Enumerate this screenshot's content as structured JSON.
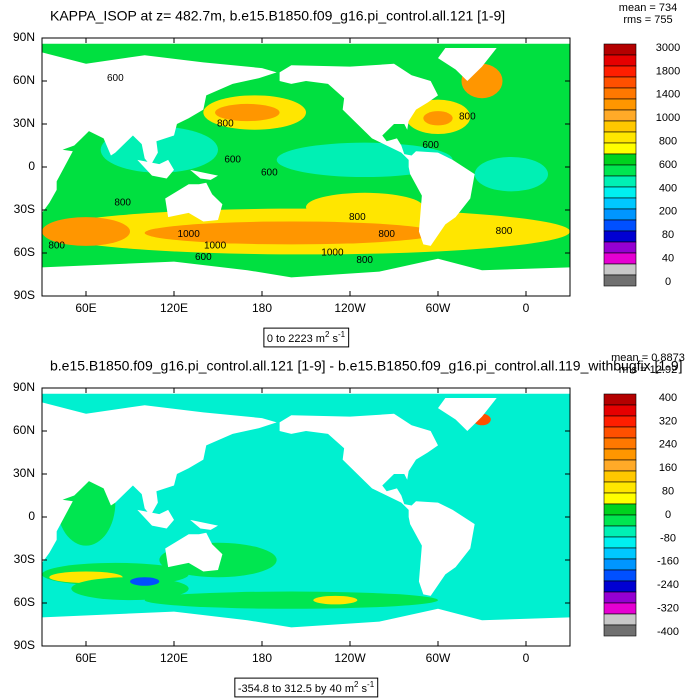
{
  "panels": [
    {
      "title": "KAPPA_ISOP at z= 482.7m, b.e15.B1850.f09_g16.pi_control.all.121 [1-9]",
      "stats": [
        "mean = 734",
        "rms = 755"
      ],
      "lat_labels": [
        "90N",
        "60N",
        "30N",
        "0",
        "30S",
        "60S",
        "90S"
      ],
      "lon_labels": [
        "60E",
        "120E",
        "180",
        "120W",
        "60W",
        "0"
      ],
      "range_label": [
        "0 to 2223 m",
        "2",
        " s",
        "-1"
      ],
      "colorbar_labels": [
        "3000",
        "1800",
        "1400",
        "1000",
        "800",
        "600",
        "400",
        "200",
        "80",
        "40",
        "0"
      ],
      "colorbar_colors": [
        "#b40000",
        "#e60000",
        "#ff1e00",
        "#ff5000",
        "#ff7800",
        "#ff9600",
        "#ffaa28",
        "#ffc800",
        "#ffe600",
        "#ffff00",
        "#00d21e",
        "#00e650",
        "#00f0b4",
        "#00f0f0",
        "#00c8ff",
        "#0096ff",
        "#0050ff",
        "#0000d2",
        "#9600d2",
        "#e600d2",
        "#c8c8c8",
        "#707070"
      ],
      "contour_labels": [
        "600",
        "800",
        "800",
        "600",
        "600",
        "600",
        "800",
        "1000",
        "1000",
        "600",
        "800",
        "800",
        "800",
        "800",
        "1000",
        "800"
      ]
    },
    {
      "title": "b.e15.B1850.f09_g16.pi_control.all.121 [1-9] - b.e15.B1850.f09_g16.pi_control.all.119_withbugfix [1-9]",
      "stats": [
        "mean = 0.8873",
        "rms = 12.92"
      ],
      "lat_labels": [
        "90N",
        "60N",
        "30N",
        "0",
        "30S",
        "60S",
        "90S"
      ],
      "lon_labels": [
        "60E",
        "120E",
        "180",
        "120W",
        "60W",
        "0"
      ],
      "range_label": [
        "-354.8 to 312.5 by 40 m",
        "2",
        " s",
        "-1"
      ],
      "colorbar_labels": [
        "400",
        "320",
        "240",
        "160",
        "80",
        "0",
        "-80",
        "-160",
        "-240",
        "-320",
        "-400"
      ],
      "colorbar_colors": [
        "#b40000",
        "#e60000",
        "#ff1e00",
        "#ff5000",
        "#ff7800",
        "#ff9600",
        "#ffaa28",
        "#ffc800",
        "#ffe600",
        "#ffff00",
        "#00d21e",
        "#00e650",
        "#00f0b4",
        "#00f0f0",
        "#00c8ff",
        "#0096ff",
        "#0050ff",
        "#0000d2",
        "#9600d2",
        "#e600d2",
        "#c8c8c8",
        "#707070"
      ],
      "contour_labels": []
    }
  ]
}
